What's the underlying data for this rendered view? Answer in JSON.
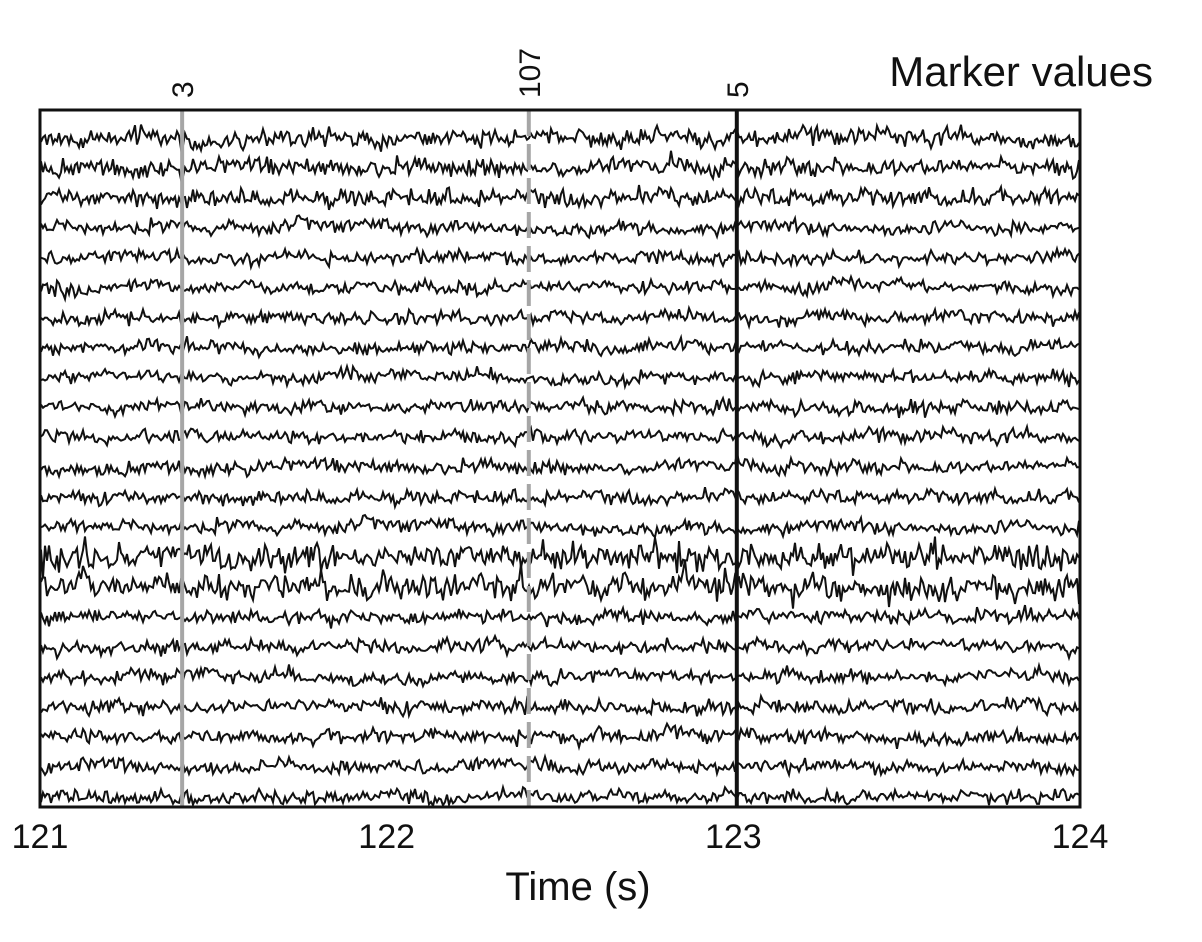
{
  "chart_data": {
    "type": "line",
    "title": "",
    "xlabel": "Time (s)",
    "ylabel": "",
    "xlim": [
      121,
      124
    ],
    "x_ticks": [
      121,
      122,
      123,
      124
    ],
    "n_channels": 23,
    "grid": false,
    "legend": "none",
    "marker_caption": "Marker values",
    "markers": [
      {
        "value": "3",
        "time": 121.41,
        "style": "solid",
        "color": "#a6a6a6"
      },
      {
        "value": "107",
        "time": 122.41,
        "style": "dashed",
        "color": "#a6a6a6"
      },
      {
        "value": "5",
        "time": 123.01,
        "style": "solid",
        "color": "#111111"
      }
    ],
    "trace_color": "#111111"
  }
}
